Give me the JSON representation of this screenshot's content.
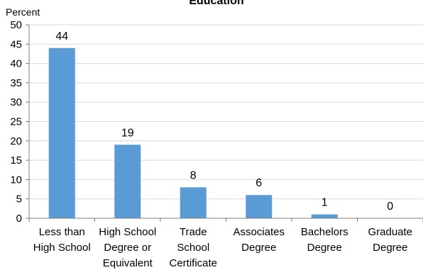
{
  "chart_data": {
    "type": "bar",
    "title": "Education",
    "ylabel": "Percent",
    "xlabel": "",
    "ylim": [
      0,
      50
    ],
    "ytick_step": 5,
    "grid": true,
    "bar_color": "#5B9BD5",
    "grid_color": "#D9D9D9",
    "categories": [
      [
        "Less than",
        "High School"
      ],
      [
        "High School",
        "Degree or",
        "Equivalent"
      ],
      [
        "Trade",
        "School",
        "Certificate"
      ],
      [
        "Associates",
        "Degree"
      ],
      [
        "Bachelors",
        "Degree"
      ],
      [
        "Graduate",
        "Degree"
      ]
    ],
    "values": [
      44,
      19,
      8,
      6,
      1,
      0
    ],
    "data_labels": [
      "44",
      "19",
      "8",
      "6",
      "1",
      "0"
    ]
  }
}
